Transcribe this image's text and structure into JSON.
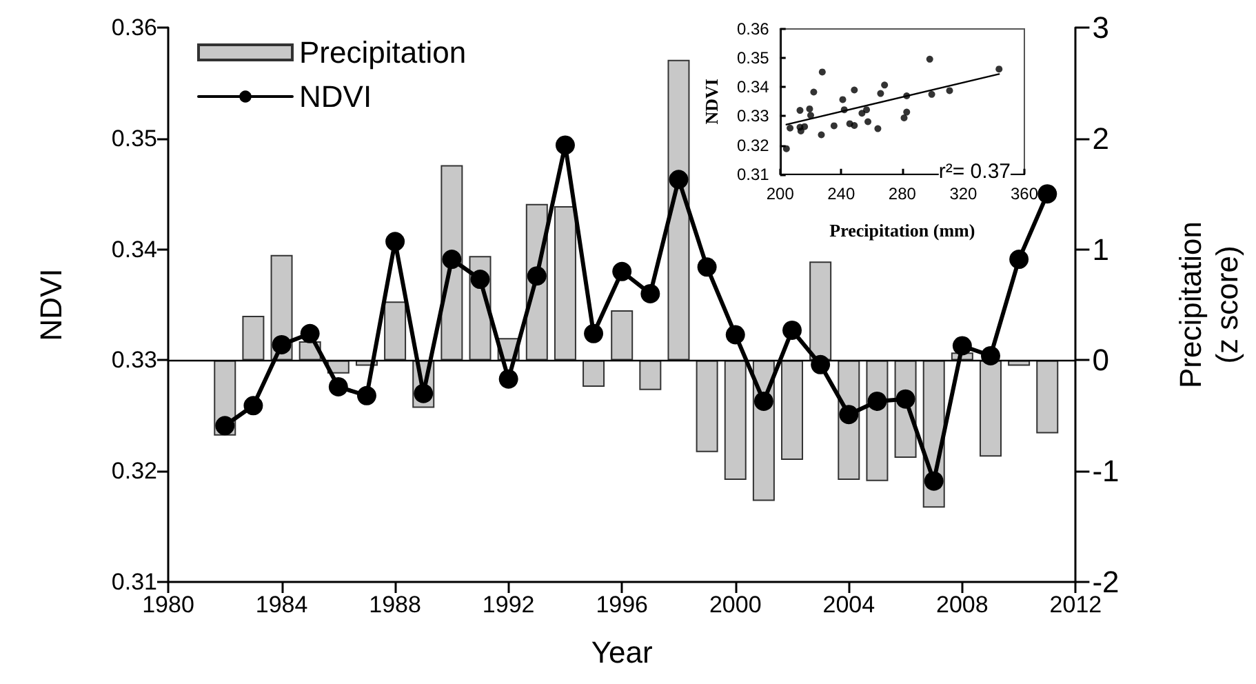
{
  "chart_data": [
    {
      "type": "bar",
      "xlabel": "Year",
      "ylabel": "NDVI",
      "y2label": "Precipitation\n(z score)",
      "x": [
        1982,
        1983,
        1984,
        1985,
        1986,
        1987,
        1988,
        1989,
        1990,
        1991,
        1992,
        1993,
        1994,
        1995,
        1996,
        1997,
        1998,
        1999,
        2000,
        2001,
        2002,
        2003,
        2004,
        2005,
        2006,
        2007,
        2008,
        2009,
        2010,
        2011
      ],
      "series": [
        {
          "name": "Precipitation",
          "type": "bar",
          "axis": "y2",
          "color": "#c8c8c8",
          "values": [
            -0.68,
            0.4,
            0.95,
            0.17,
            -0.12,
            -0.05,
            0.53,
            -0.43,
            1.76,
            0.94,
            0.2,
            1.41,
            1.39,
            -0.24,
            0.45,
            -0.27,
            2.71,
            -0.83,
            -1.08,
            -1.27,
            -0.9,
            0.89,
            -1.08,
            -1.09,
            -0.88,
            -1.33,
            0.07,
            -0.87,
            -0.05,
            -0.66
          ]
        },
        {
          "name": "NDVI",
          "type": "line",
          "color": "#000000",
          "values": [
            0.3241,
            0.3259,
            0.3314,
            0.3324,
            0.3276,
            0.3268,
            0.3407,
            0.327,
            0.3391,
            0.3373,
            0.3283,
            0.3376,
            0.3494,
            0.3324,
            0.338,
            0.336,
            0.3463,
            0.3384,
            0.3323,
            0.3263,
            0.3327,
            0.3296,
            0.3251,
            0.3263,
            0.3265,
            0.3191,
            0.3313,
            0.3304,
            0.3391,
            0.345
          ]
        }
      ],
      "xlim": [
        1980,
        2012
      ],
      "xticks": [
        1980,
        1984,
        1988,
        1992,
        1996,
        2000,
        2004,
        2008,
        2012
      ],
      "ylim": [
        0.31,
        0.36
      ],
      "yticks": [
        0.31,
        0.32,
        0.33,
        0.34,
        0.35,
        0.36
      ],
      "y2lim": [
        -2,
        3
      ],
      "y2ticks": [
        -2,
        -1,
        0,
        1,
        2,
        3
      ],
      "ref_lines": [
        {
          "axis": "y2",
          "value": 0,
          "color": "#000000"
        }
      ],
      "legend": "top left",
      "grid": false,
      "marker": "circle",
      "line_style": "solid"
    },
    {
      "type": "scatter",
      "xlabel": "Precipitation (mm)",
      "ylabel": "NDVI",
      "annotations": [
        "r²= 0.37"
      ],
      "series": [
        {
          "color": "#000000",
          "x": [
            204.1,
            206.5,
            213,
            213,
            213.6,
            216,
            219.3,
            220,
            222,
            227,
            227.6,
            235.3,
            241,
            242,
            245.6,
            248.6,
            248.6,
            253.6,
            256.6,
            257.5,
            264,
            265.8,
            268.4,
            281.2,
            282.9,
            282.9,
            298,
            299.3,
            311,
            343.4
          ],
          "values": [
            0.3188,
            0.3259,
            0.332,
            0.3262,
            0.3249,
            0.3264,
            0.3325,
            0.3303,
            0.3383,
            0.3236,
            0.3452,
            0.3267,
            0.3357,
            0.3322,
            0.3274,
            0.3268,
            0.339,
            0.331,
            0.3322,
            0.3281,
            0.3257,
            0.3378,
            0.3407,
            0.3294,
            0.3314,
            0.337,
            0.3496,
            0.3375,
            0.3388,
            0.3462
          ]
        },
        {
          "type": "line",
          "color": "#000000",
          "x": [
            204.1,
            343.4
          ],
          "values": [
            0.3271,
            0.3445
          ],
          "marker": "none"
        }
      ],
      "xlim": [
        200,
        360
      ],
      "xticks": [
        200,
        240,
        280,
        320,
        360
      ],
      "ylim": [
        0.31,
        0.36
      ],
      "yticks": [
        0.31,
        0.32,
        0.33,
        0.34,
        0.35,
        0.36
      ],
      "legend": false,
      "grid": false,
      "marker": "circle",
      "line_style": "solid"
    }
  ]
}
